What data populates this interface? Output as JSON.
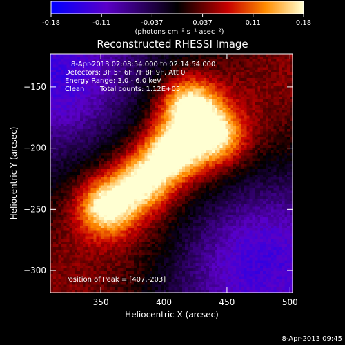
{
  "chart_data": {
    "type": "heatmap",
    "title": "Reconstructed RHESSI Image",
    "xlabel": "Heliocentric X (arcsec)",
    "ylabel": "Heliocentric Y (arcsec)",
    "xlim": [
      310,
      502
    ],
    "ylim": [
      -318,
      -123
    ],
    "x_ticks": [
      350,
      400,
      450,
      500
    ],
    "y_ticks": [
      -150,
      -200,
      -250,
      -300
    ],
    "colorbar": {
      "range": [
        -0.18,
        0.18
      ],
      "ticks": [
        "-0.18",
        "-0.11",
        "-0.037",
        "0.037",
        "0.11",
        "0.18"
      ],
      "label": "(photons cm⁻² s⁻¹ asec⁻²)",
      "colormap": [
        "#0000ff",
        "#6e00c8",
        "#000000",
        "#c80000",
        "#ff8c00",
        "#ffffd2"
      ]
    },
    "annotations": {
      "time_range": "8-Apr-2013 02:08:54.000 to 02:14:54.000",
      "detectors": "Detectors: 3F 5F 6F 7F 8F 9F, Att 0",
      "energy": "Energy Range: 3.0 - 6.0 keV",
      "clean": "Clean",
      "counts": "Total counts: 1.12E+05",
      "peak": "Position of Peak = [407,-203]"
    },
    "sources": [
      {
        "x": 407,
        "y": -203,
        "amp": 0.18
      },
      {
        "x": 420,
        "y": -165,
        "amp": 0.17
      },
      {
        "x": 355,
        "y": -248,
        "amp": 0.165
      },
      {
        "x": 383,
        "y": -228,
        "amp": 0.15
      },
      {
        "x": 440,
        "y": -190,
        "amp": 0.15
      }
    ],
    "timestamp": "8-Apr-2013 09:45"
  }
}
